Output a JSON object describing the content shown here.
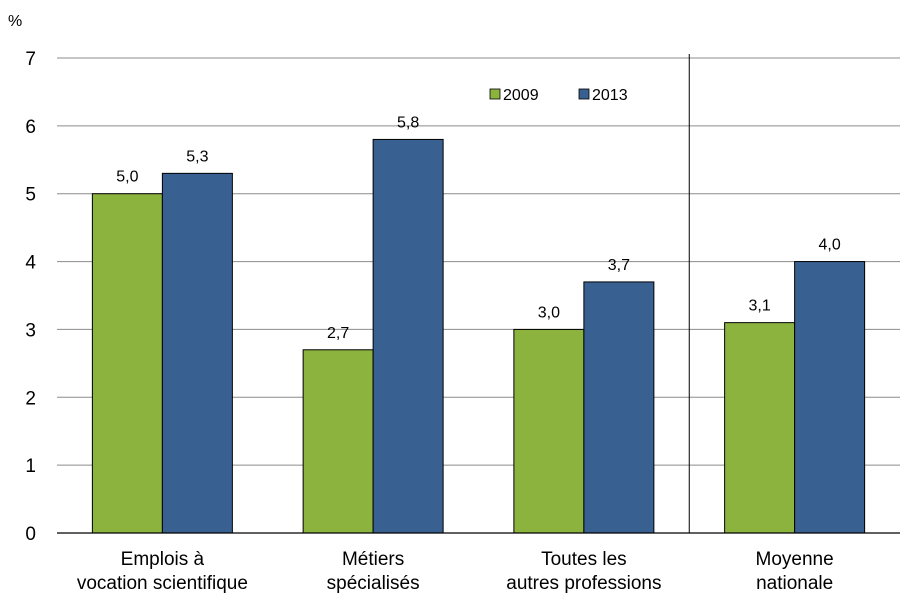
{
  "chart_data": {
    "type": "bar",
    "unit_label": "%",
    "categories": [
      [
        "Emplois à",
        "vocation scientifique"
      ],
      [
        "Métiers",
        "spécialisés"
      ],
      [
        "Toutes les",
        "autres professions"
      ],
      [
        "Moyenne",
        "nationale"
      ]
    ],
    "series": [
      {
        "name": "2009",
        "color": "#8DB33F",
        "values": [
          5.0,
          2.7,
          3.0,
          3.1
        ],
        "labels": [
          "5,0",
          "2,7",
          "3,0",
          "3,1"
        ]
      },
      {
        "name": "2013",
        "color": "#386192",
        "values": [
          5.3,
          5.8,
          3.7,
          4.0
        ],
        "labels": [
          "5,3",
          "5,8",
          "3,7",
          "4,0"
        ]
      }
    ],
    "ylim": [
      0,
      7
    ],
    "yticks": [
      0,
      1,
      2,
      3,
      4,
      5,
      6,
      7
    ],
    "grid": true,
    "legend_position": "top-right",
    "separator_before_category": 4
  }
}
